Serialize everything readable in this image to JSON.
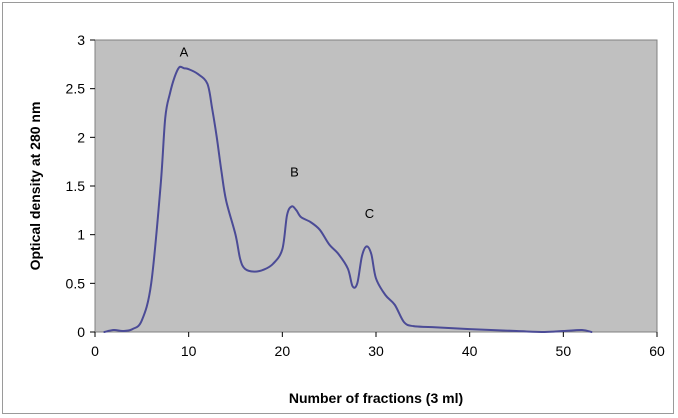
{
  "chart_data": {
    "type": "line",
    "title": "",
    "xlabel": "Number of fractions (3 ml)",
    "ylabel": "Optical density at 280 nm",
    "xlim": [
      0,
      60
    ],
    "ylim": [
      0,
      3
    ],
    "x_ticks": [
      "0",
      "10",
      "20",
      "30",
      "40",
      "50",
      "60"
    ],
    "y_ticks": [
      "0",
      "0.5",
      "1",
      "1.5",
      "2",
      "2.5",
      "3"
    ],
    "grid": false,
    "legend": "none",
    "plot_background": "#c0c0c0",
    "line_color": "#4b4b96",
    "annotations": [
      {
        "text": "A",
        "x": 9.5,
        "y": 2.83
      },
      {
        "text": "B",
        "x": 21.3,
        "y": 1.6
      },
      {
        "text": "C",
        "x": 29.3,
        "y": 1.17
      }
    ],
    "series": [
      {
        "x": [
          1,
          2,
          3,
          4,
          5,
          6,
          7,
          7.5,
          8,
          8.5,
          9,
          9.5,
          10,
          11,
          12,
          12.5,
          13,
          13.5,
          14,
          15,
          15.5,
          16,
          17,
          18,
          19,
          20,
          20.5,
          21,
          21.5,
          22,
          23,
          24,
          25,
          26,
          27,
          27.5,
          28,
          28.5,
          29,
          29.5,
          30,
          31,
          32,
          33,
          34,
          36,
          40,
          45,
          48,
          50,
          52,
          53
        ],
        "y": [
          0.0,
          0.02,
          0.01,
          0.03,
          0.12,
          0.5,
          1.5,
          2.2,
          2.45,
          2.62,
          2.72,
          2.71,
          2.7,
          2.65,
          2.55,
          2.3,
          2.0,
          1.65,
          1.35,
          1.0,
          0.75,
          0.65,
          0.62,
          0.64,
          0.7,
          0.85,
          1.2,
          1.29,
          1.25,
          1.18,
          1.13,
          1.05,
          0.9,
          0.8,
          0.65,
          0.47,
          0.5,
          0.78,
          0.88,
          0.8,
          0.55,
          0.38,
          0.28,
          0.1,
          0.06,
          0.05,
          0.03,
          0.01,
          0.0,
          0.01,
          0.02,
          0.0
        ]
      }
    ]
  }
}
